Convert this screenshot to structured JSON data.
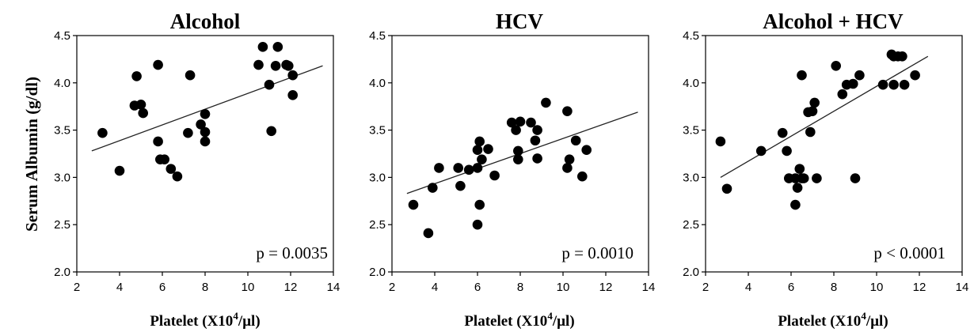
{
  "figure": {
    "ylabel": "Serum Albumin (g/dl)"
  },
  "chart_data": [
    {
      "type": "scatter",
      "title": "Alcohol",
      "xlabel": "Platelet (X10",
      "xlabel_sup": "4",
      "xlabel_end": "/µl)",
      "ylabel": "Serum Albumin (g/dl)",
      "xlim": [
        2,
        14
      ],
      "ylim": [
        2.0,
        4.5
      ],
      "xticks": [
        "2",
        "4",
        "6",
        "8",
        "10",
        "12",
        "14"
      ],
      "yticks": [
        "2.0",
        "2.5",
        "3.0",
        "3.5",
        "4.0",
        "4.5"
      ],
      "annotation": "p = 0.0035",
      "trendline": {
        "x": [
          2.7,
          13.5
        ],
        "y": [
          3.28,
          4.18
        ]
      },
      "x": [
        3.2,
        4.0,
        4.7,
        4.8,
        5.0,
        5.1,
        5.8,
        5.8,
        5.9,
        6.1,
        6.4,
        6.7,
        7.2,
        7.3,
        7.8,
        8.0,
        8.0,
        8.0,
        10.5,
        10.7,
        11.0,
        11.1,
        11.3,
        11.4,
        11.8,
        11.9,
        12.1,
        12.1
      ],
      "y": [
        3.47,
        3.07,
        3.76,
        4.07,
        3.77,
        3.68,
        4.19,
        3.38,
        3.19,
        3.19,
        3.09,
        3.01,
        3.47,
        4.08,
        3.56,
        3.67,
        3.48,
        3.38,
        4.19,
        4.38,
        3.98,
        3.49,
        4.18,
        4.38,
        4.19,
        4.18,
        4.08,
        3.87
      ]
    },
    {
      "type": "scatter",
      "title": "HCV",
      "xlabel": "Platelet (X10",
      "xlabel_sup": "4",
      "xlabel_end": "/µl)",
      "ylabel": "",
      "xlim": [
        2,
        14
      ],
      "ylim": [
        2.0,
        4.5
      ],
      "xticks": [
        "2",
        "4",
        "6",
        "8",
        "10",
        "12",
        "14"
      ],
      "yticks": [
        "2.0",
        "2.5",
        "3.0",
        "3.5",
        "4.0",
        "4.5"
      ],
      "annotation": "p = 0.0010",
      "trendline": {
        "x": [
          2.7,
          13.5
        ],
        "y": [
          2.83,
          3.69
        ]
      },
      "x": [
        3.0,
        3.7,
        3.9,
        4.2,
        5.1,
        5.2,
        5.6,
        6.0,
        6.0,
        6.0,
        6.1,
        6.1,
        6.2,
        6.5,
        6.8,
        7.6,
        7.8,
        7.9,
        7.9,
        8.0,
        8.5,
        8.7,
        8.8,
        8.8,
        9.2,
        10.2,
        10.2,
        10.3,
        10.6,
        10.9,
        11.1
      ],
      "y": [
        2.71,
        2.41,
        2.89,
        3.1,
        3.1,
        2.91,
        3.08,
        2.5,
        3.1,
        3.29,
        2.71,
        3.38,
        3.19,
        3.3,
        3.02,
        3.58,
        3.5,
        3.19,
        3.28,
        3.59,
        3.58,
        3.39,
        3.5,
        3.2,
        3.79,
        3.7,
        3.1,
        3.19,
        3.39,
        3.01,
        3.29
      ]
    },
    {
      "type": "scatter",
      "title": "Alcohol + HCV",
      "xlabel": "Platelet (X10",
      "xlabel_sup": "4",
      "xlabel_end": "/µl)",
      "ylabel": "",
      "xlim": [
        2,
        14
      ],
      "ylim": [
        2.0,
        4.5
      ],
      "xticks": [
        "2",
        "4",
        "6",
        "8",
        "10",
        "12",
        "14"
      ],
      "yticks": [
        "2.0",
        "2.5",
        "3.0",
        "3.5",
        "4.0",
        "4.5"
      ],
      "annotation": "p < 0.0001",
      "trendline": {
        "x": [
          2.7,
          12.4
        ],
        "y": [
          3.0,
          4.28
        ]
      },
      "x": [
        2.7,
        3.0,
        4.6,
        5.6,
        5.8,
        5.9,
        6.2,
        6.2,
        6.3,
        6.4,
        6.5,
        6.5,
        6.6,
        6.8,
        6.9,
        7.0,
        7.1,
        7.2,
        8.1,
        8.4,
        8.6,
        8.9,
        9.0,
        9.2,
        10.3,
        10.7,
        10.8,
        10.8,
        11.0,
        11.2,
        11.3,
        11.8
      ],
      "y": [
        3.38,
        2.88,
        3.28,
        3.47,
        3.28,
        2.99,
        2.71,
        2.99,
        2.89,
        3.09,
        4.08,
        2.99,
        2.99,
        3.69,
        3.48,
        3.7,
        3.79,
        2.99,
        4.18,
        3.88,
        3.98,
        3.99,
        2.99,
        4.08,
        3.98,
        4.3,
        3.98,
        4.28,
        4.28,
        4.28,
        3.98,
        4.08
      ]
    }
  ]
}
